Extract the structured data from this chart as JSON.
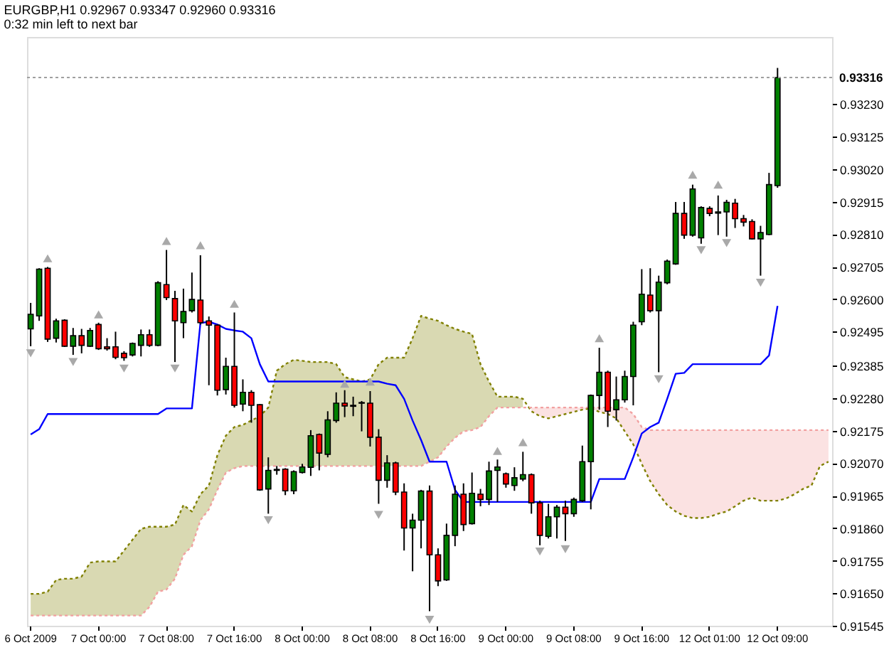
{
  "chart_data": {
    "type": "candlestick",
    "title": "EURGBP,H1 0.92967 0.93347 0.92960 0.93316",
    "subtitle": "0:32 min left to next bar",
    "categories": [
      "6 Oct 2009",
      null,
      null,
      null,
      null,
      null,
      null,
      null,
      "7 Oct 00:00",
      null,
      null,
      null,
      null,
      null,
      null,
      null,
      "7 Oct 08:00",
      null,
      null,
      null,
      null,
      null,
      null,
      null,
      "7 Oct 16:00",
      null,
      null,
      null,
      null,
      null,
      null,
      null,
      "8 Oct 00:00",
      null,
      null,
      null,
      null,
      null,
      null,
      null,
      "8 Oct 08:00",
      null,
      null,
      null,
      null,
      null,
      null,
      null,
      "8 Oct 16:00",
      null,
      null,
      null,
      null,
      null,
      null,
      null,
      "9 Oct 00:00",
      null,
      null,
      null,
      null,
      null,
      null,
      null,
      "9 Oct 08:00",
      null,
      null,
      null,
      null,
      null,
      null,
      null,
      "9 Oct 16:00",
      null,
      null,
      null,
      null,
      null,
      null,
      null,
      "12 Oct 01:00",
      null,
      null,
      null,
      null,
      null,
      null,
      null,
      "12 Oct 09:00",
      null,
      null,
      null,
      null,
      null,
      null
    ],
    "ohlc": [
      [
        0.92504,
        0.92588,
        0.92448,
        0.92551
      ],
      [
        0.92546,
        0.927,
        0.9253,
        0.92697
      ],
      [
        0.927,
        0.92704,
        0.92462,
        0.92471
      ],
      [
        0.92474,
        0.92537,
        0.9246,
        0.9253
      ],
      [
        0.92532,
        0.92535,
        0.92446,
        0.92448
      ],
      [
        0.92448,
        0.92507,
        0.9242,
        0.92482
      ],
      [
        0.92482,
        0.92504,
        0.92425,
        0.92451
      ],
      [
        0.92448,
        0.92507,
        0.92446,
        0.92499
      ],
      [
        0.92518,
        0.92524,
        0.92436,
        0.9244
      ],
      [
        0.92446,
        0.92474,
        0.92434,
        0.9244
      ],
      [
        0.92446,
        0.92495,
        0.92406,
        0.92412
      ],
      [
        0.92425,
        0.92432,
        0.92401,
        0.92411
      ],
      [
        0.9242,
        0.9246,
        0.92415,
        0.92457
      ],
      [
        0.92451,
        0.92502,
        0.92415,
        0.92485
      ],
      [
        0.92485,
        0.92502,
        0.92446,
        0.92451
      ],
      [
        0.92451,
        0.92658,
        0.92448,
        0.92653
      ],
      [
        0.92647,
        0.92759,
        0.92597,
        0.92605
      ],
      [
        0.92602,
        0.92627,
        0.92397,
        0.9253
      ],
      [
        0.92524,
        0.92634,
        0.92474,
        0.9256
      ],
      [
        0.92563,
        0.92686,
        0.92557,
        0.92599
      ],
      [
        0.92597,
        0.92742,
        0.92518,
        0.92524
      ],
      [
        0.9253,
        0.92544,
        0.92322,
        0.92516
      ],
      [
        0.92516,
        0.92518,
        0.92289,
        0.92306
      ],
      [
        0.92308,
        0.92411,
        0.92292,
        0.92383
      ],
      [
        0.92383,
        0.92557,
        0.9225,
        0.92257
      ],
      [
        0.92261,
        0.92341,
        0.92238,
        0.92299
      ],
      [
        0.92299,
        0.92306,
        0.92201,
        0.92257
      ],
      [
        0.92259,
        0.92261,
        0.91981,
        0.91984
      ],
      [
        0.91987,
        0.92089,
        0.91907,
        0.92047
      ],
      [
        0.92047,
        0.92061,
        0.92033,
        0.9205
      ],
      [
        0.92051,
        0.92054,
        0.91967,
        0.91981
      ],
      [
        0.91981,
        0.92047,
        0.9197,
        0.92043
      ],
      [
        0.9204,
        0.92068,
        0.92037,
        0.92058
      ],
      [
        0.92057,
        0.92177,
        0.92029,
        0.92159
      ],
      [
        0.92163,
        0.92166,
        0.92047,
        0.92103
      ],
      [
        0.92099,
        0.92238,
        0.92089,
        0.9221
      ],
      [
        0.92208,
        0.92299,
        0.92201,
        0.92264
      ],
      [
        0.92264,
        0.92306,
        0.92219,
        0.92255
      ],
      [
        0.92257,
        0.92285,
        0.92222,
        0.92254
      ],
      [
        0.92266,
        0.92271,
        0.92173,
        0.92264
      ],
      [
        0.92264,
        0.92303,
        0.92124,
        0.92154
      ],
      [
        0.92154,
        0.9218,
        0.91939,
        0.92015
      ],
      [
        0.92015,
        0.92096,
        0.91991,
        0.92071
      ],
      [
        0.92071,
        0.92075,
        0.91967,
        0.91977
      ],
      [
        0.91977,
        0.92005,
        0.91788,
        0.91861
      ],
      [
        0.91861,
        0.91907,
        0.91721,
        0.91886
      ],
      [
        0.91886,
        0.91984,
        0.91795,
        0.9198
      ],
      [
        0.9198,
        0.91998,
        0.91592,
        0.91774
      ],
      [
        0.91774,
        0.91795,
        0.91673,
        0.9169
      ],
      [
        0.91693,
        0.91875,
        0.9169,
        0.91837
      ],
      [
        0.91837,
        0.91998,
        0.91802,
        0.9197
      ],
      [
        0.9197,
        0.92005,
        0.91851,
        0.91872
      ],
      [
        0.91875,
        0.9204,
        0.91872,
        0.91973
      ],
      [
        0.9197,
        0.91987,
        0.91931,
        0.91953
      ],
      [
        0.91953,
        0.92075,
        0.91935,
        0.92045
      ],
      [
        0.92047,
        0.92082,
        0.91945,
        0.92058
      ],
      [
        0.92036,
        0.9204,
        0.91991,
        0.92003
      ],
      [
        0.91998,
        0.92057,
        0.91981,
        0.92023
      ],
      [
        0.92019,
        0.92107,
        0.92012,
        0.92033
      ],
      [
        0.92033,
        0.92037,
        0.91907,
        0.91942
      ],
      [
        0.91942,
        0.91949,
        0.91805,
        0.91837
      ],
      [
        0.91834,
        0.91939,
        0.91827,
        0.91897
      ],
      [
        0.91897,
        0.91935,
        0.91827,
        0.91928
      ],
      [
        0.91928,
        0.91949,
        0.91819,
        0.91907
      ],
      [
        0.91907,
        0.91959,
        0.91897,
        0.91953
      ],
      [
        0.91949,
        0.92127,
        0.91945,
        0.92075
      ],
      [
        0.92075,
        0.92292,
        0.91921,
        0.92289
      ],
      [
        0.92289,
        0.92443,
        0.92243,
        0.92364
      ],
      [
        0.92364,
        0.92369,
        0.92187,
        0.92238
      ],
      [
        0.92243,
        0.9235,
        0.92208,
        0.92275
      ],
      [
        0.92275,
        0.92369,
        0.92266,
        0.9235
      ],
      [
        0.9235,
        0.92527,
        0.92257,
        0.92516
      ],
      [
        0.92527,
        0.92697,
        0.92516,
        0.92616
      ],
      [
        0.92613,
        0.927,
        0.92557,
        0.92563
      ],
      [
        0.92563,
        0.92676,
        0.92364,
        0.92655
      ],
      [
        0.92653,
        0.92728,
        0.92648,
        0.92723
      ],
      [
        0.92714,
        0.92914,
        0.92711,
        0.92877
      ],
      [
        0.92877,
        0.92914,
        0.92795,
        0.92807
      ],
      [
        0.92807,
        0.9297,
        0.92802,
        0.92956
      ],
      [
        0.92798,
        0.929,
        0.92779,
        0.92896
      ],
      [
        0.92893,
        0.929,
        0.92868,
        0.92877
      ],
      [
        0.92878,
        0.92935,
        0.92807,
        0.92882
      ],
      [
        0.92882,
        0.92921,
        0.92802,
        0.92913
      ],
      [
        0.9291,
        0.92924,
        0.9283,
        0.9286
      ],
      [
        0.9286,
        0.92872,
        0.92835,
        0.92849
      ],
      [
        0.92851,
        0.92858,
        0.92793,
        0.92795
      ],
      [
        0.92795,
        0.92837,
        0.92676,
        0.92815
      ],
      [
        0.92809,
        0.93008,
        0.92807,
        0.9297
      ],
      [
        0.92967,
        0.93347,
        0.9296,
        0.93316
      ],
      null,
      null,
      null,
      null,
      null,
      null
    ],
    "colors": [
      "#008000",
      "#008000",
      "#ff0000",
      "#008000",
      "#ff0000",
      "#008000",
      "#ff0000",
      "#008000",
      "#ff0000",
      "#ff0000",
      "#ff0000",
      "#ff0000",
      "#008000",
      "#008000",
      "#ff0000",
      "#008000",
      "#ff0000",
      "#ff0000",
      "#008000",
      "#008000",
      "#ff0000",
      "#ff0000",
      "#ff0000",
      "#008000",
      "#ff0000",
      "#008000",
      "#ff0000",
      "#ff0000",
      "#008000",
      "#008000",
      "#ff0000",
      "#008000",
      "#008000",
      "#008000",
      "#ff0000",
      "#008000",
      "#008000",
      "#ff0000",
      "#ff0000",
      "#ff0000",
      "#ff0000",
      "#ff0000",
      "#008000",
      "#ff0000",
      "#ff0000",
      "#008000",
      "#008000",
      "#ff0000",
      "#ff0000",
      "#008000",
      "#008000",
      "#ff0000",
      "#008000",
      "#ff0000",
      "#008000",
      "#008000",
      "#ff0000",
      "#008000",
      "#008000",
      "#ff0000",
      "#ff0000",
      "#008000",
      "#008000",
      "#ff0000",
      "#008000",
      "#008000",
      "#008000",
      "#008000",
      "#ff0000",
      "#008000",
      "#008000",
      "#008000",
      "#008000",
      "#ff0000",
      "#008000",
      "#008000",
      "#008000",
      "#ff0000",
      "#008000",
      "#008000",
      "#ff0000",
      "#008000",
      "#008000",
      "#ff0000",
      "#ff0000",
      "#ff0000",
      "#008000",
      "#008000",
      "#008000",
      null,
      null,
      null,
      null,
      null,
      null
    ],
    "series": [
      {
        "type": "line",
        "color": "#808000",
        "line_style": "dotted",
        "values": [
          0.91648,
          0.91648,
          0.91655,
          0.91693,
          0.91697,
          0.91697,
          0.91704,
          0.91749,
          0.91753,
          0.91753,
          0.91753,
          0.91788,
          0.91823,
          0.91858,
          0.91865,
          0.91865,
          0.91865,
          0.91872,
          0.91935,
          0.91914,
          0.9197,
          0.91998,
          0.92096,
          0.92159,
          0.92187,
          0.92194,
          0.92208,
          0.92222,
          0.9225,
          0.92369,
          0.9239,
          0.92404,
          0.92401,
          0.92397,
          0.92397,
          0.92397,
          0.9239,
          0.92348,
          0.92341,
          0.92334,
          0.92341,
          0.9239,
          0.92411,
          0.92411,
          0.92411,
          0.92474,
          0.92546,
          0.92537,
          0.9253,
          0.92516,
          0.92504,
          0.92495,
          0.92488,
          0.9239,
          0.92334,
          0.92285,
          0.92285,
          0.92285,
          0.92278,
          0.92238,
          0.92222,
          0.92215,
          0.92222,
          0.92229,
          0.92236,
          0.92243,
          0.92247,
          0.92236,
          0.92229,
          0.92215,
          0.92173,
          0.92131,
          0.92068,
          0.92012,
          0.9197,
          0.91935,
          0.91914,
          0.919,
          0.91893,
          0.91893,
          0.91897,
          0.91907,
          0.91914,
          0.91931,
          0.91949,
          0.91959,
          0.91949,
          0.91949,
          0.91949,
          0.91956,
          0.9197,
          0.91987,
          0.91998,
          0.92061,
          0.92075
        ],
        "lower": [
          0.91578,
          0.91578,
          0.91578,
          0.91578,
          0.91578,
          0.91578,
          0.91578,
          0.91578,
          0.91578,
          0.91578,
          0.91578,
          0.91578,
          0.91578,
          0.91578,
          0.91606,
          0.91655,
          0.91662,
          0.91697,
          0.91774,
          0.91802,
          0.91886,
          0.91921,
          0.91984,
          0.9204,
          0.92054,
          0.92061,
          0.92061,
          0.92061,
          0.92061,
          0.92061,
          0.92061,
          0.92061,
          0.92061,
          0.92061,
          0.92061,
          0.92061,
          0.92061,
          0.92061,
          0.92061,
          0.92061,
          0.92061,
          0.92061,
          0.92061,
          0.92061,
          0.92061,
          0.92061,
          0.92061,
          0.92075,
          0.92089,
          0.92124,
          0.92152,
          0.92173,
          0.92177,
          0.92187,
          0.92222,
          0.9225,
          0.9225,
          0.9225,
          0.9225,
          null,
          null,
          null,
          null,
          null,
          null,
          null,
          null,
          null,
          null,
          null,
          null,
          null,
          null,
          null,
          null,
          null,
          null,
          null,
          null,
          null,
          null,
          null,
          null,
          null,
          null,
          null,
          null,
          null,
          null,
          null,
          null,
          null,
          null,
          null,
          null
        ],
        "upper": [
          0.91648,
          0.91648,
          0.91655,
          0.91693,
          0.91697,
          0.91697,
          0.91704,
          0.91749,
          0.91753,
          0.91753,
          0.91753,
          0.91788,
          0.91823,
          0.91858,
          0.91865,
          0.91865,
          0.91865,
          0.91872,
          0.91935,
          0.91914,
          0.9197,
          0.91998,
          0.92096,
          0.92159,
          0.92187,
          0.92194,
          0.92208,
          0.92222,
          0.9225,
          0.92369,
          0.9239,
          0.92404,
          0.92401,
          0.92397,
          0.92397,
          0.92397,
          0.9239,
          0.92348,
          0.92341,
          0.92334,
          0.92341,
          0.9239,
          0.92411,
          0.92411,
          0.92411,
          0.92474,
          0.92546,
          0.92537,
          0.9253,
          0.92516,
          0.92504,
          0.92495,
          0.92488,
          0.9239,
          0.92334,
          0.92285,
          0.92285,
          0.92285,
          0.92278,
          null,
          null,
          null,
          null,
          null,
          null,
          null,
          null,
          null,
          null,
          null,
          null,
          null,
          null,
          null,
          null,
          null,
          null,
          null,
          null,
          null,
          null,
          null,
          null,
          null,
          null,
          null,
          null,
          null,
          null,
          null,
          null,
          null,
          null,
          null,
          null
        ]
      },
      {
        "type": "line",
        "color": "#f2a0a0",
        "line_style": "dotted",
        "values": [
          0.91578,
          0.91578,
          0.91578,
          0.91578,
          0.91578,
          0.91578,
          0.91578,
          0.91578,
          0.91578,
          0.91578,
          0.91578,
          0.91578,
          0.91578,
          0.91578,
          0.91606,
          0.91655,
          0.91662,
          0.91697,
          0.91774,
          0.91802,
          0.91886,
          0.91921,
          0.91984,
          0.9204,
          0.92054,
          0.92061,
          0.92061,
          0.92061,
          0.92061,
          0.92061,
          0.92061,
          0.92061,
          0.92061,
          0.92061,
          0.92061,
          0.92061,
          0.92061,
          0.92061,
          0.92061,
          0.92061,
          0.92061,
          0.92061,
          0.92061,
          0.92061,
          0.92061,
          0.92061,
          0.92061,
          0.92075,
          0.92089,
          0.92124,
          0.92152,
          0.92173,
          0.92177,
          0.92187,
          0.92222,
          0.9225,
          0.9225,
          0.9225,
          0.9225,
          0.9225,
          0.9225,
          0.9225,
          0.9225,
          0.9225,
          0.9225,
          0.9225,
          0.9225,
          0.9225,
          0.9225,
          0.9225,
          0.9225,
          0.92229,
          0.92187,
          0.92177,
          0.92177,
          0.92177,
          0.92177,
          0.92177,
          0.92177,
          0.92177,
          0.92177,
          0.92177,
          0.92177,
          0.92177,
          0.92177,
          0.92177,
          0.92177,
          0.92177,
          0.92177,
          0.92177,
          0.92177,
          0.92177,
          0.92177,
          0.92177,
          0.92177
        ],
        "lower": [
          null,
          null,
          null,
          null,
          null,
          null,
          null,
          null,
          null,
          null,
          null,
          null,
          null,
          null,
          null,
          null,
          null,
          null,
          null,
          null,
          null,
          null,
          null,
          null,
          null,
          null,
          null,
          null,
          null,
          null,
          null,
          null,
          null,
          null,
          null,
          null,
          null,
          null,
          null,
          null,
          null,
          null,
          null,
          null,
          null,
          null,
          null,
          null,
          null,
          null,
          null,
          null,
          null,
          null,
          null,
          null,
          null,
          null,
          null,
          0.92238,
          0.92222,
          0.92215,
          0.92222,
          0.92229,
          0.92236,
          0.92243,
          0.92247,
          0.92236,
          0.92229,
          0.92215,
          0.92173,
          0.92131,
          0.92068,
          0.92012,
          0.9197,
          0.91935,
          0.91914,
          0.919,
          0.91893,
          0.91893,
          0.91897,
          0.91907,
          0.91914,
          0.91931,
          0.91949,
          0.91959,
          0.91949,
          0.91949,
          0.91949,
          0.91956,
          0.9197,
          0.91987,
          0.91998,
          0.92061,
          0.92075
        ],
        "upper": [
          null,
          null,
          null,
          null,
          null,
          null,
          null,
          null,
          null,
          null,
          null,
          null,
          null,
          null,
          null,
          null,
          null,
          null,
          null,
          null,
          null,
          null,
          null,
          null,
          null,
          null,
          null,
          null,
          null,
          null,
          null,
          null,
          null,
          null,
          null,
          null,
          null,
          null,
          null,
          null,
          null,
          null,
          null,
          null,
          null,
          null,
          null,
          null,
          null,
          null,
          null,
          null,
          null,
          null,
          null,
          null,
          null,
          null,
          null,
          0.9225,
          0.9225,
          0.9225,
          0.9225,
          0.9225,
          0.9225,
          0.9225,
          0.9225,
          0.9225,
          0.9225,
          0.9225,
          0.9225,
          0.92229,
          0.92187,
          0.92177,
          0.92177,
          0.92177,
          0.92177,
          0.92177,
          0.92177,
          0.92177,
          0.92177,
          0.92177,
          0.92177,
          0.92177,
          0.92177,
          0.92177,
          0.92177,
          0.92177,
          0.92177,
          0.92177,
          0.92177,
          0.92177,
          0.92177,
          0.92177,
          0.92177
        ]
      },
      {
        "type": "line",
        "color": "#0000ff",
        "values": [
          0.92163,
          0.9218,
          0.92229,
          0.92229,
          0.92229,
          0.92229,
          0.92229,
          0.92229,
          0.92229,
          0.92229,
          0.92229,
          0.92229,
          0.92229,
          0.92229,
          0.92229,
          0.92229,
          0.92247,
          0.92247,
          0.92247,
          0.92247,
          0.92523,
          0.92527,
          0.92518,
          0.92504,
          0.92499,
          0.92495,
          0.92474,
          0.9239,
          0.92334,
          0.92334,
          0.92334,
          0.92334,
          0.92334,
          0.92334,
          0.92334,
          0.92334,
          0.92334,
          0.92334,
          0.92334,
          0.92334,
          0.92334,
          0.92334,
          0.92327,
          0.92322,
          0.92278,
          0.92208,
          0.92145,
          0.92075,
          0.92075,
          0.92075,
          0.91984,
          0.91945,
          0.91945,
          0.91945,
          0.91945,
          0.91945,
          0.91945,
          0.91945,
          0.91945,
          0.91945,
          0.91945,
          0.91945,
          0.91945,
          0.91945,
          0.91945,
          0.91945,
          0.91945,
          0.92019,
          0.92019,
          0.92019,
          0.92019,
          0.92089,
          0.92166,
          0.92187,
          0.92201,
          0.92278,
          0.92359,
          0.92362,
          0.9239,
          0.9239,
          0.9239,
          0.9239,
          0.9239,
          0.9239,
          0.9239,
          0.9239,
          0.9239,
          0.92418,
          0.92578,
          null,
          null,
          null,
          null,
          null,
          null
        ]
      },
      {
        "type": "scatter",
        "color": "#a9a9a9",
        "marker": "triangle",
        "values": [
          null,
          null,
          0.92732,
          null,
          null,
          null,
          null,
          null,
          0.92551,
          null,
          null,
          null,
          null,
          null,
          null,
          null,
          0.92788,
          null,
          null,
          null,
          0.92774,
          null,
          null,
          null,
          0.92585,
          null,
          null,
          null,
          null,
          null,
          null,
          null,
          null,
          null,
          null,
          null,
          null,
          0.92327,
          null,
          null,
          0.92334,
          null,
          null,
          null,
          null,
          null,
          null,
          null,
          null,
          null,
          null,
          null,
          null,
          null,
          null,
          0.9211,
          null,
          null,
          0.92138,
          null,
          null,
          null,
          null,
          null,
          null,
          null,
          null,
          0.92474,
          null,
          null,
          null,
          null,
          null,
          null,
          null,
          null,
          null,
          null,
          0.93002,
          null,
          null,
          0.9297,
          null,
          null,
          null,
          null,
          null,
          null,
          null,
          null,
          null,
          null,
          null,
          null,
          null
        ]
      },
      {
        "type": "scatter",
        "color": "#a9a9a9",
        "marker": "triangle-down",
        "values": [
          0.92425,
          null,
          null,
          null,
          null,
          0.92397,
          null,
          null,
          null,
          null,
          null,
          0.92376,
          null,
          null,
          null,
          null,
          null,
          0.92376,
          null,
          null,
          null,
          null,
          null,
          null,
          null,
          null,
          null,
          null,
          0.91886,
          null,
          null,
          null,
          null,
          null,
          null,
          null,
          null,
          null,
          null,
          null,
          null,
          0.91903,
          null,
          null,
          null,
          null,
          null,
          0.91564,
          null,
          null,
          null,
          null,
          null,
          null,
          null,
          null,
          null,
          null,
          null,
          null,
          0.91785,
          null,
          null,
          0.91792,
          null,
          null,
          null,
          null,
          null,
          null,
          null,
          null,
          null,
          null,
          0.92341,
          null,
          null,
          null,
          null,
          0.92758,
          null,
          null,
          0.92781,
          null,
          null,
          null,
          0.92653,
          null,
          null,
          null,
          null,
          null,
          null,
          null,
          null
        ]
      }
    ],
    "ylim": [
      0.91545,
      0.93447
    ],
    "yticks": [
      0.91545,
      {
        "value": 0.9165,
        "label": "0.91650"
      },
      0.91755,
      {
        "value": 0.9186,
        "label": "0.91860"
      },
      0.91965,
      {
        "value": 0.9207,
        "label": "0.92070"
      },
      0.92175,
      {
        "value": 0.9228,
        "label": "0.92280"
      },
      0.92385,
      0.92495,
      {
        "value": 0.926,
        "label": "0.92600"
      },
      0.92705,
      {
        "value": 0.9281,
        "label": "0.92810"
      },
      0.92915,
      {
        "value": 0.9302,
        "label": "0.93020"
      },
      0.93125,
      {
        "value": 0.9323,
        "label": "0.93230"
      }
    ],
    "ref_lines": [
      {
        "axis": "y",
        "value": 0.93316,
        "label": "0.93316",
        "color": "#a0a0a0",
        "line_style": "dotted"
      }
    ]
  }
}
